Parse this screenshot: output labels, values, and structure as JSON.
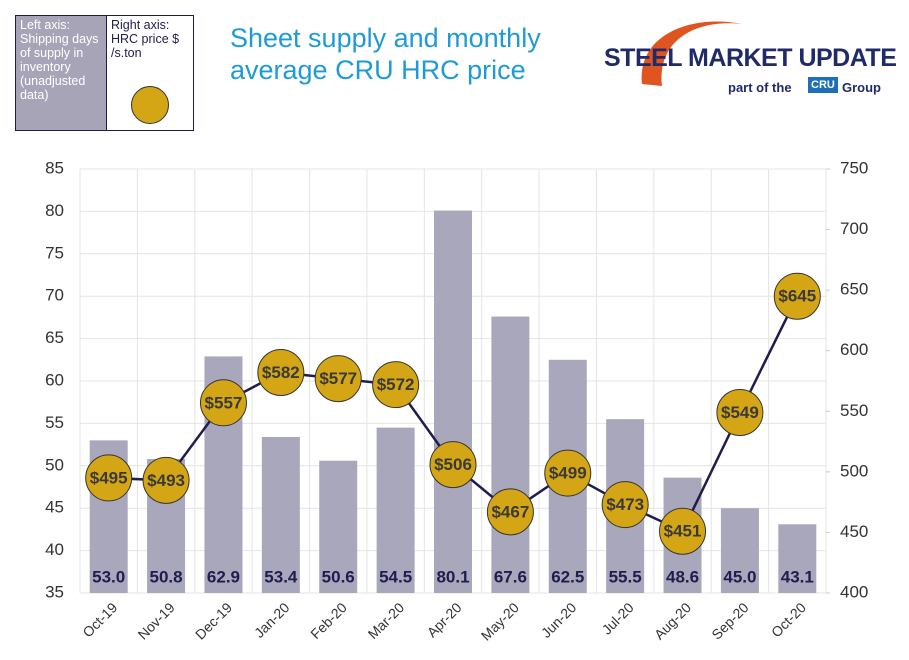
{
  "chart_data": {
    "type": "combo",
    "title": "Sheet supply and monthly average CRU HRC price",
    "logo": {
      "brand": "STEEL MARKET UPDATE",
      "tagline": "part of the",
      "badge": "CRU",
      "suffix": "Group"
    },
    "categories": [
      "Oct-19",
      "Nov-19",
      "Dec-19",
      "Jan-20",
      "Feb-20",
      "Mar-20",
      "Apr-20",
      "May-20",
      "Jun-20",
      "Jul-20",
      "Aug-20",
      "Sep-20",
      "Oct-20"
    ],
    "series": [
      {
        "legend_heading": "Left axis:",
        "name": "Shipping days of supply in inventory (unadjusted data)",
        "type": "bar",
        "axis": "y",
        "color": "#a9a7bc",
        "values": [
          53.0,
          50.8,
          62.9,
          53.4,
          50.6,
          54.5,
          80.1,
          67.6,
          62.5,
          55.5,
          48.6,
          45.0,
          43.1
        ],
        "value_labels": [
          "53.0",
          "50.8",
          "62.9",
          "53.4",
          "50.6",
          "54.5",
          "80.1",
          "67.6",
          "62.5",
          "55.5",
          "48.6",
          "45.0",
          "43.1"
        ]
      },
      {
        "legend_heading": "Right axis:",
        "name": "HRC price $ /s.ton",
        "type": "line",
        "axis": "y2",
        "color": "#d4a616",
        "line_color": "#1f1d4d",
        "values": [
          495,
          493,
          557,
          582,
          577,
          572,
          506,
          467,
          499,
          473,
          451,
          549,
          645
        ],
        "value_labels": [
          "$495",
          "$493",
          "$557",
          "$582",
          "$577",
          "$572",
          "$506",
          "$467",
          "$499",
          "$473",
          "$451",
          "$549",
          "$645"
        ]
      }
    ],
    "ylim": [
      35,
      85
    ],
    "yticks": [
      35,
      40,
      45,
      50,
      55,
      60,
      65,
      70,
      75,
      80,
      85
    ],
    "y2lim": [
      400,
      750
    ],
    "y2ticks": [
      400,
      450,
      500,
      550,
      600,
      650,
      700,
      750
    ],
    "grid": true
  }
}
